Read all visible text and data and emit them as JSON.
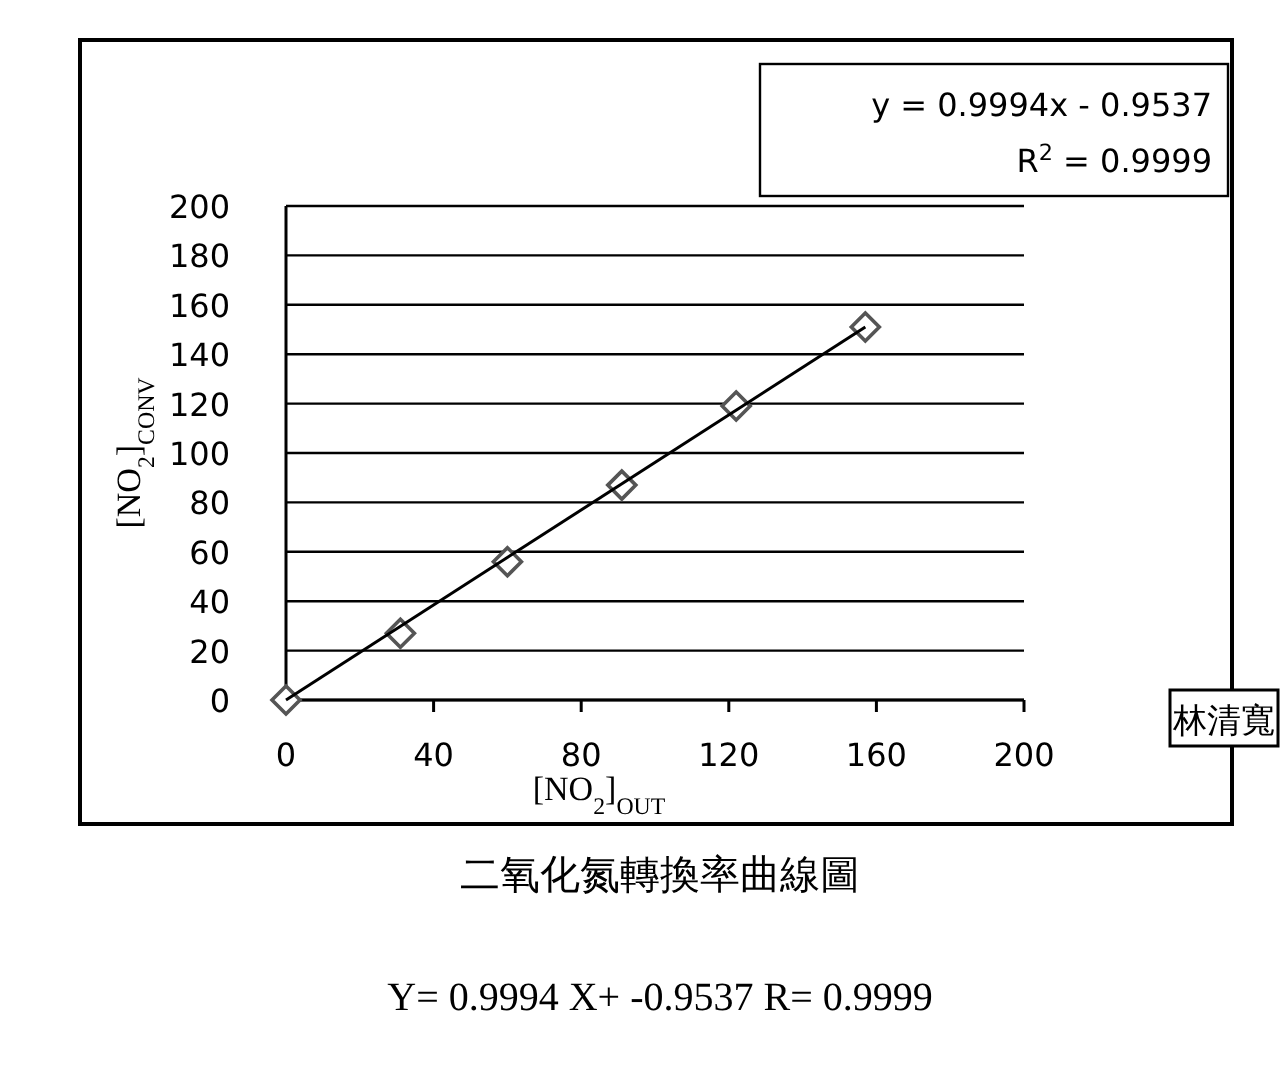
{
  "chart_data": {
    "type": "scatter",
    "title": "二氧化氮轉換率曲線圖",
    "xlabel": "[NO$_{2}$]$_{OUT}$",
    "ylabel": "[NO$_{2}$]$_{CONV}$",
    "series": [
      {
        "type": "scatter",
        "marker": "diamond",
        "color": "#555555",
        "x": [
          0,
          31,
          60,
          91,
          122,
          157
        ],
        "values": [
          0,
          27,
          56,
          87,
          119,
          151
        ]
      },
      {
        "type": "line",
        "color": "#000000",
        "x": [
          0,
          157
        ],
        "values": [
          0,
          151
        ]
      }
    ],
    "xlim": [
      0,
      200
    ],
    "xticks": [
      0,
      40,
      80,
      120,
      160,
      200
    ],
    "ylim": [
      0,
      200
    ],
    "yticks": [
      0,
      20,
      40,
      60,
      80,
      100,
      120,
      140,
      160,
      180,
      200
    ],
    "grid": "y",
    "annotations": [
      "y = 0.9994x - 0.9537",
      "R$^{2}$ = 0.9999",
      "林清寬",
      "Y= 0.9994 X+ -0.9537 R= 0.9999"
    ]
  }
}
